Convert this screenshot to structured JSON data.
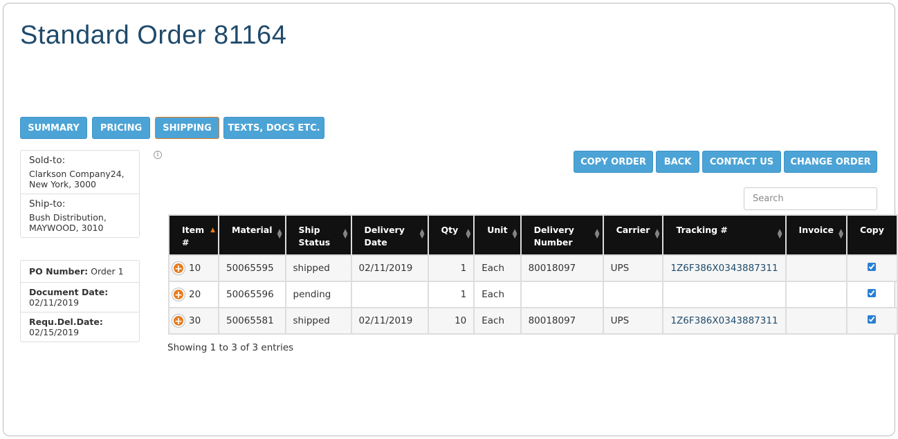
{
  "title": "Standard Order 81164",
  "tabs": [
    {
      "label": "SUMMARY"
    },
    {
      "label": "PRICING"
    },
    {
      "label": "SHIPPING",
      "active": true
    },
    {
      "label": "TEXTS, DOCS ETC."
    }
  ],
  "actions": {
    "copy": "COPY ORDER",
    "back": "BACK",
    "contact": "CONTACT US",
    "change": "CHANGE ORDER"
  },
  "address": {
    "sold_to_label": "Sold-to:",
    "sold_to_1": "Clarkson Company24,",
    "sold_to_2": "New York, 3000",
    "ship_to_label": "Ship-to:",
    "ship_to_1": "Bush Distribution,",
    "ship_to_2": "MAYWOOD, 3010"
  },
  "order_info": {
    "po_label": "PO Number:",
    "po_value": "Order 1",
    "doc_date_label": "Document Date:",
    "doc_date": "02/11/2019",
    "req_label": "Requ.Del.Date:",
    "req_date": "02/15/2019"
  },
  "search": {
    "placeholder": "Search",
    "value": ""
  },
  "table": {
    "columns": [
      "Item #",
      "Material",
      "Ship Status",
      "Delivery Date",
      "Qty",
      "Unit",
      "Delivery Number",
      "Carrier",
      "Tracking #",
      "Invoice",
      "Copy"
    ],
    "sorted_column": "Item #",
    "sort_direction": "ascending",
    "rows": [
      {
        "item": "10",
        "material": "50065595",
        "status": "shipped",
        "date": "02/11/2019",
        "qty": "1",
        "unit": "Each",
        "delivery": "80018097",
        "carrier": "UPS",
        "tracking": "1Z6F386X0343887311",
        "invoice": "",
        "copy": true
      },
      {
        "item": "20",
        "material": "50065596",
        "status": "pending",
        "date": "",
        "qty": "1",
        "unit": "Each",
        "delivery": "",
        "carrier": "",
        "tracking": "",
        "invoice": "",
        "copy": true
      },
      {
        "item": "30",
        "material": "50065581",
        "status": "shipped",
        "date": "02/11/2019",
        "qty": "10",
        "unit": "Each",
        "delivery": "80018097",
        "carrier": "UPS",
        "tracking": "1Z6F386X0343887311",
        "invoice": "",
        "copy": true
      }
    ]
  },
  "footer": "Showing 1 to 3 of 3 entries",
  "colors": {
    "accent": "#4ca3d6",
    "active_border": "#e87c1e",
    "title": "#1f4a6b",
    "header_bg": "#111111"
  }
}
